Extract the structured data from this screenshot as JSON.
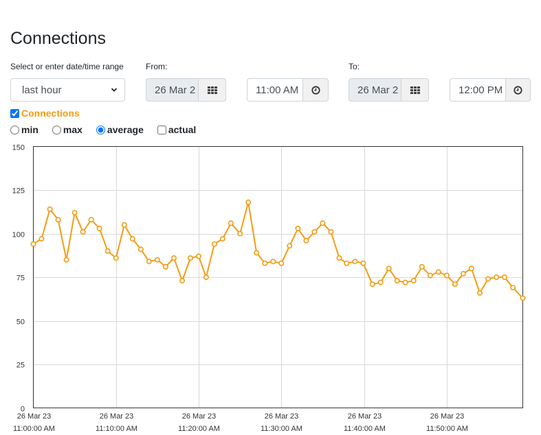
{
  "page": {
    "title": "Connections"
  },
  "controls": {
    "range_label": "Select or enter date/time range",
    "range_value": "last hour",
    "from_label": "From:",
    "from_date": "26 Mar 2",
    "from_time": "11:00 AM",
    "to_label": "To:",
    "to_date": "26 Mar 2",
    "to_time": "12:00 PM"
  },
  "series_toggle": {
    "label": "Connections",
    "checked": true,
    "color": "#f39c12"
  },
  "aggregation": {
    "options": [
      "min",
      "max",
      "average",
      "actual"
    ],
    "selected": "average",
    "actual_checked": false
  },
  "colors": {
    "accent": "#f39c12",
    "grid": "#d8d8d8",
    "axis": "#333333"
  },
  "chart_data": {
    "type": "line",
    "title": "",
    "xlabel": "",
    "ylabel": "",
    "ylim": [
      0,
      150
    ],
    "yticks": [
      0,
      25,
      50,
      75,
      100,
      125,
      150
    ],
    "xlim_minutes": [
      0,
      59.2
    ],
    "xticks": [
      {
        "minute": 0,
        "date": "26 Mar 23",
        "time": "11:00:00 AM"
      },
      {
        "minute": 10,
        "date": "26 Mar 23",
        "time": "11:10:00 AM"
      },
      {
        "minute": 20,
        "date": "26 Mar 23",
        "time": "11:20:00 AM"
      },
      {
        "minute": 30,
        "date": "26 Mar 23",
        "time": "11:30:00 AM"
      },
      {
        "minute": 40,
        "date": "26 Mar 23",
        "time": "11:40:00 AM"
      },
      {
        "minute": 50,
        "date": "26 Mar 23",
        "time": "11:50:00 AM"
      }
    ],
    "grid": true,
    "series": [
      {
        "name": "Connections",
        "color": "#f39c12",
        "x": [
          0.0,
          1.0,
          2.0,
          3.0,
          4.0,
          5.0,
          6.0,
          7.0,
          8.0,
          9.0,
          10.0,
          11.0,
          12.0,
          13.0,
          14.0,
          15.0,
          16.0,
          17.0,
          18.0,
          19.0,
          20.0,
          20.9,
          21.9,
          22.9,
          23.9,
          25.0,
          26.0,
          27.0,
          28.0,
          29.0,
          30.0,
          31.0,
          32.0,
          33.0,
          34.0,
          35.0,
          36.0,
          37.0,
          37.9,
          38.9,
          39.9,
          41.0,
          42.0,
          43.0,
          44.0,
          45.0,
          46.0,
          47.0,
          48.0,
          49.0,
          50.0,
          51.0,
          52.0,
          53.0,
          54.0,
          55.0,
          56.0,
          57.0,
          58.0,
          59.2
        ],
        "values": [
          94,
          97,
          114,
          108,
          85,
          112,
          101,
          108,
          103,
          90,
          86,
          105,
          97,
          91,
          84,
          85,
          81,
          86,
          73,
          86,
          87,
          75,
          94,
          97,
          106,
          100,
          118,
          89,
          83,
          84,
          83,
          93,
          103,
          96,
          101,
          106,
          101,
          86,
          83,
          84,
          83,
          71,
          72,
          80,
          73,
          72,
          73,
          81,
          76,
          78,
          76,
          71,
          77,
          80,
          66,
          74,
          75,
          75,
          69,
          63
        ]
      }
    ]
  }
}
